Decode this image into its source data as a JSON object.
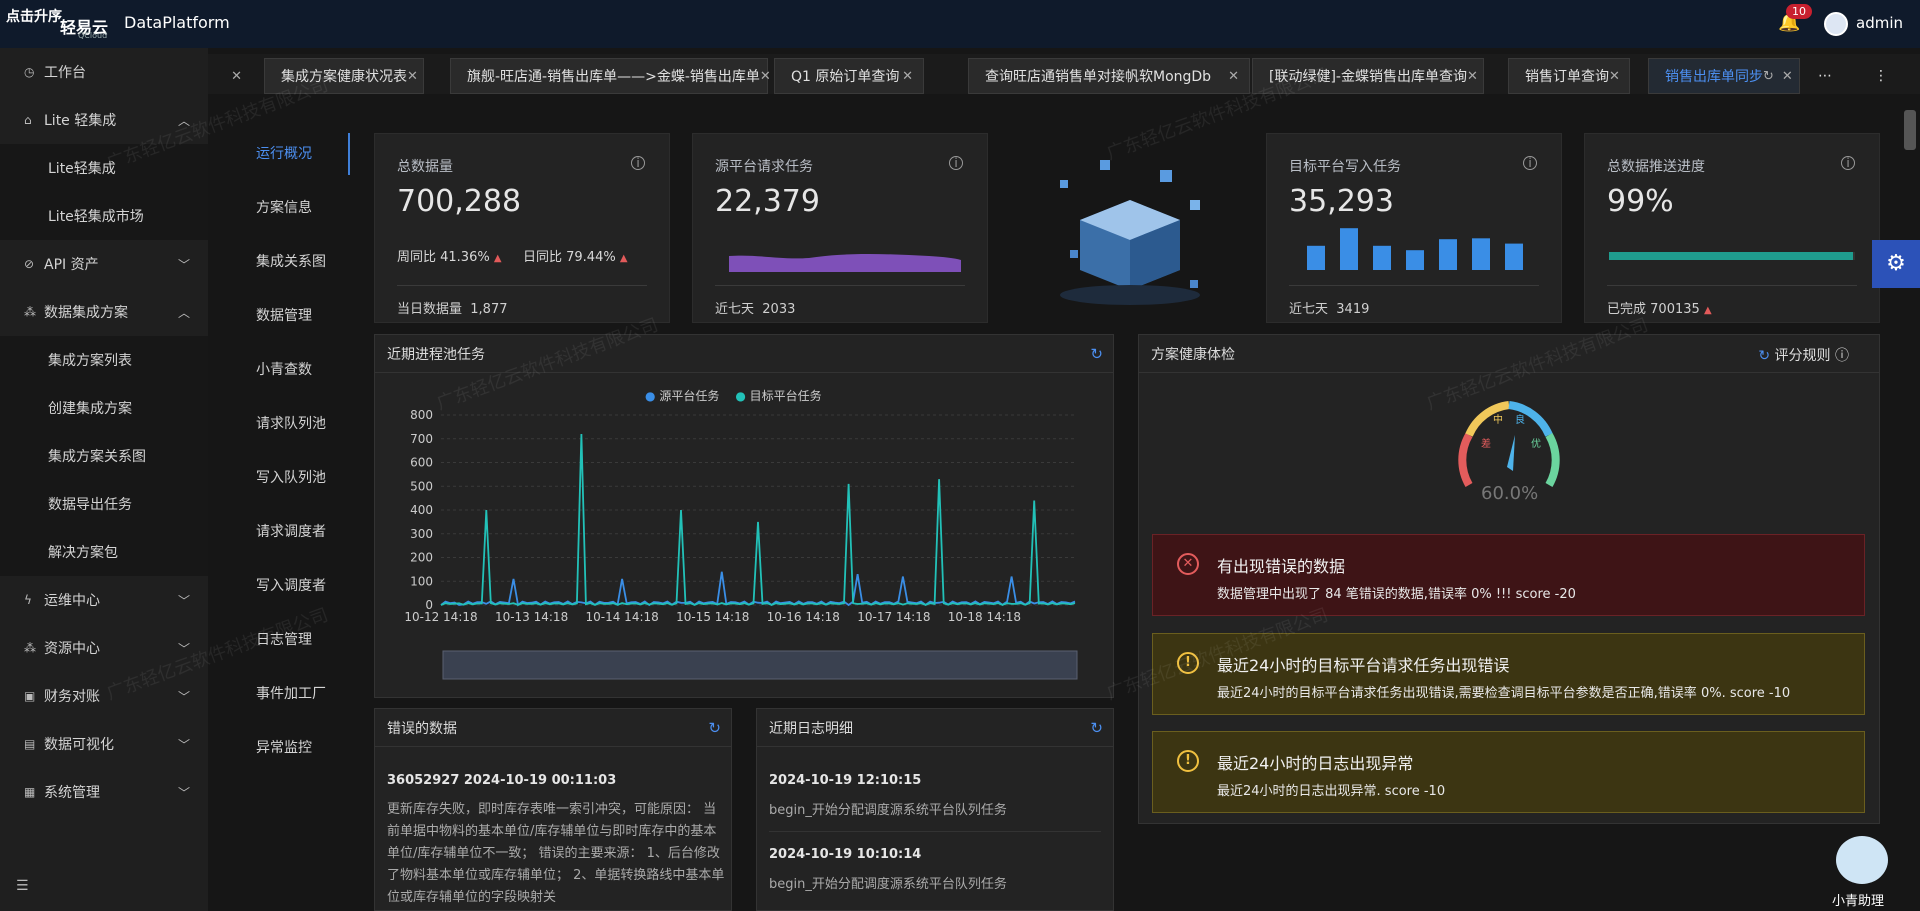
{
  "topbar": {
    "upgrade": "点击升序",
    "logo": "轻易云",
    "logo_sub": "QCloud",
    "brand": "DataPlatform",
    "notif_count": "10",
    "user": "admin"
  },
  "sidebar": {
    "items": [
      {
        "label": "工作台",
        "icon": "clock-icon"
      },
      {
        "label": "Lite 轻集成",
        "icon": "lite-icon"
      },
      {
        "label": "API 资产",
        "icon": "api-icon"
      },
      {
        "label": "数据集成方案",
        "icon": "flow-icon"
      },
      {
        "label": "运维中心",
        "icon": "bolt-icon"
      },
      {
        "label": "资源中心",
        "icon": "resource-icon"
      },
      {
        "label": "财务对账",
        "icon": "finance-icon"
      },
      {
        "label": "数据可视化",
        "icon": "chart-icon"
      },
      {
        "label": "系统管理",
        "icon": "system-icon"
      }
    ],
    "lite_sub": [
      "Lite轻集成",
      "Lite轻集成市场"
    ],
    "plan_sub": [
      "集成方案列表",
      "创建集成方案",
      "集成方案关系图",
      "数据导出任务",
      "解决方案包"
    ]
  },
  "tabs": [
    {
      "label": "集成方案健康状况表"
    },
    {
      "label": "旗舰-旺店通-销售出库单——>金蝶-销售出库单"
    },
    {
      "label": "Q1 原始订单查询"
    },
    {
      "label": "查询旺店通销售单对接帆软MongDb"
    },
    {
      "label": "[联动绿健]-金蝶销售出库单查询"
    },
    {
      "label": "销售订单查询"
    },
    {
      "label": "销售出库单同步"
    }
  ],
  "subnav": [
    "运行概况",
    "方案信息",
    "集成关系图",
    "数据管理",
    "小青查数",
    "请求队列池",
    "写入队列池",
    "请求调度者",
    "写入调度者",
    "日志管理",
    "事件加工厂",
    "异常监控"
  ],
  "stats": {
    "total": {
      "label": "总数据量",
      "value": "700,288",
      "wow": "周同比 41.36%",
      "dod": "日同比 79.44%",
      "foot_label": "当日数据量",
      "foot_value": "1,877"
    },
    "source": {
      "label": "源平台请求任务",
      "value": "22,379",
      "foot_label": "近七天",
      "foot_value": "2033"
    },
    "target": {
      "label": "目标平台写入任务",
      "value": "35,293",
      "foot_label": "近七天",
      "foot_value": "3419"
    },
    "progress": {
      "label": "总数据推送进度",
      "value": "99%",
      "foot_label": "已完成",
      "foot_value": "700135",
      "fraction": 0.99
    }
  },
  "target_bars": [
    0.55,
    0.95,
    0.55,
    0.45,
    0.7,
    0.72,
    0.6
  ],
  "pool": {
    "title": "近期进程池任务",
    "legend": [
      "源平台任务",
      "目标平台任务"
    ],
    "colors": [
      "#3a8ee6",
      "#22c1b8"
    ]
  },
  "chart_data": {
    "type": "line",
    "title": "近期进程池任务",
    "x_ticks": [
      "10-12 14:18",
      "10-13 14:18",
      "10-14 14:18",
      "10-15 14:18",
      "10-16 14:18",
      "10-17 14:18",
      "10-18 14:18"
    ],
    "y_ticks": [
      "0",
      "100",
      "200",
      "300",
      "400",
      "500",
      "600",
      "700",
      "800"
    ],
    "ylim": [
      0,
      800
    ],
    "series": [
      {
        "name": "源平台任务",
        "peaks": [
          [
            0.2,
            0
          ],
          [
            0.8,
            110
          ],
          [
            2.0,
            110
          ],
          [
            2.3,
            0
          ],
          [
            3.1,
            140
          ],
          [
            4.6,
            130
          ],
          [
            5.1,
            120
          ],
          [
            6.3,
            120
          ]
        ]
      },
      {
        "name": "目标平台任务",
        "peaks": [
          [
            0.5,
            400
          ],
          [
            1.55,
            720
          ],
          [
            2.65,
            400
          ],
          [
            3.5,
            350
          ],
          [
            4.5,
            510
          ],
          [
            5.5,
            530
          ],
          [
            6.55,
            440
          ]
        ]
      }
    ]
  },
  "health": {
    "title": "方案健康体检",
    "rules": "评分规则",
    "score": "60.0%",
    "gauge_labels": [
      "差",
      "中",
      "良",
      "优"
    ]
  },
  "alerts": [
    {
      "title": "有出现错误的数据",
      "desc": "数据管理中出现了 84 笔错误的数据,错误率 0% !!! score -20",
      "level": "error"
    },
    {
      "title": "最近24小时的目标平台请求任务出现错误",
      "desc": "最近24小时的目标平台请求任务出现错误,需要检查调目标平台参数是否正确,错误率 0%. score -10",
      "level": "warn"
    },
    {
      "title": "最近24小时的日志出现异常",
      "desc": "最近24小时的日志出现异常. score -10",
      "level": "warn"
    }
  ],
  "errors": {
    "title": "错误的数据",
    "id": "36052927 2024-10-19 00:11:03",
    "text": "更新库存失败，即时库存表唯一索引冲突，可能原因： 当前单据中物料的基本单位/库存辅单位与即时库存中的基本单位/库存辅单位不一致； 错误的主要来源： 1、后台修改了物料基本单位或库存辅单位； 2、单据转换路线中基本单位或库存辅单位的字段映射关"
  },
  "logs": {
    "title": "近期日志明细",
    "entries": [
      {
        "time": "2024-10-19 12:10:15",
        "text": "begin_开始分配调度源系统平台队列任务"
      },
      {
        "time": "2024-10-19 10:10:14",
        "text": "begin_开始分配调度源系统平台队列任务"
      }
    ]
  },
  "assistant": "小青助理",
  "watermark": "广东轻亿云软件科技有限公司"
}
